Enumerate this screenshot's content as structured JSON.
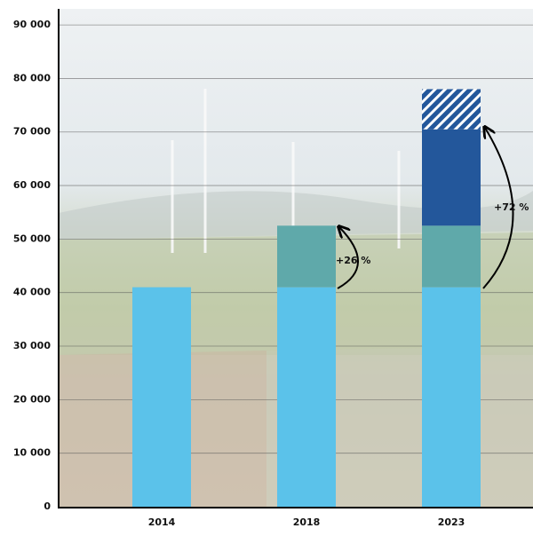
{
  "chart_data": {
    "type": "bar",
    "stacked": true,
    "categories": [
      "2014",
      "2018",
      "2023"
    ],
    "series": [
      {
        "color": "#5bc2ea",
        "values": [
          41000,
          41000,
          41000
        ]
      },
      {
        "color": "#5fa9aa",
        "values": [
          null,
          11500,
          11500
        ]
      },
      {
        "color": "#23579b",
        "values": [
          null,
          null,
          18000
        ]
      },
      {
        "color": "#23579b",
        "pattern": "hatch",
        "values": [
          null,
          null,
          7500
        ]
      }
    ],
    "ylim": [
      0,
      93000
    ],
    "yticks": [
      0,
      {
        "value": 10000,
        "label": "10 000"
      },
      {
        "value": 20000,
        "label": "20 000"
      },
      {
        "value": 30000,
        "label": "30 000"
      },
      {
        "value": 40000,
        "label": "40 000"
      },
      {
        "value": 50000,
        "label": "50 000"
      },
      {
        "value": 60000,
        "label": "60 000"
      },
      {
        "value": 70000,
        "label": "70 000"
      },
      {
        "value": 80000,
        "label": "80 000"
      },
      {
        "value": 90000,
        "label": "90 000"
      }
    ],
    "grid": true,
    "annotations": [
      "+26 %",
      "+72 %"
    ]
  }
}
